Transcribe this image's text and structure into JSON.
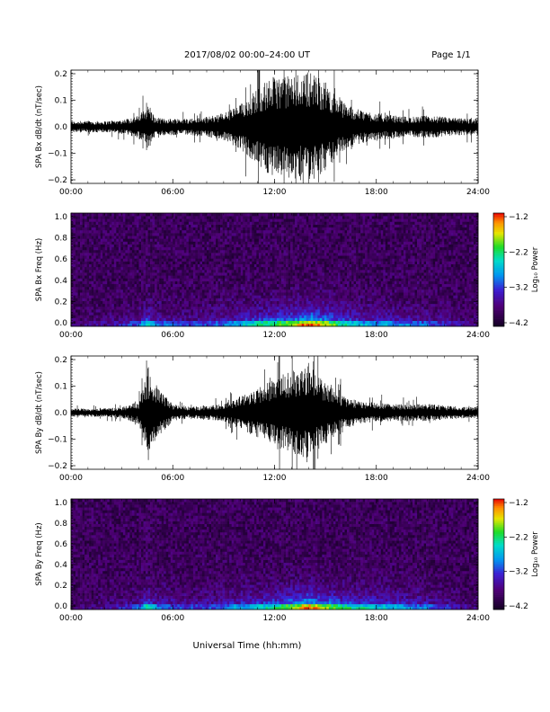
{
  "header": {
    "title": "2017/08/02   00:00–24:00 UT",
    "page": "Page 1/1"
  },
  "footer": {
    "xlabel": "Universal Time (hh:mm)"
  },
  "colors": {
    "background": "#ffffff",
    "trace": "#000000",
    "spectrogram_floor": "#1a0030"
  },
  "chart_data": [
    {
      "type": "line",
      "ylabel": "SPA Bx dB/dt (nT/sec)",
      "x_ticks": [
        "00:00",
        "06:00",
        "12:00",
        "18:00",
        "24:00"
      ],
      "y_ticks": [
        "0.2",
        "0.1",
        "0.0",
        "−0.1",
        "−0.2"
      ],
      "ylim": [
        -0.2,
        0.2
      ],
      "x": [
        0,
        1,
        2,
        3,
        4,
        4.5,
        5,
        6,
        7,
        8,
        9,
        10,
        11,
        12,
        13,
        14,
        15,
        16,
        17,
        18,
        19,
        20,
        21,
        22,
        23,
        24
      ],
      "amplitude": [
        0.02,
        0.02,
        0.02,
        0.025,
        0.04,
        0.08,
        0.03,
        0.03,
        0.03,
        0.035,
        0.05,
        0.08,
        0.14,
        0.18,
        0.18,
        0.2,
        0.16,
        0.09,
        0.06,
        0.05,
        0.04,
        0.035,
        0.04,
        0.035,
        0.03,
        0.03
      ]
    },
    {
      "type": "heatmap",
      "ylabel": "SPA Bx Freq (Hz)",
      "x_ticks": [
        "00:00",
        "06:00",
        "12:00",
        "18:00",
        "24:00"
      ],
      "y_ticks": [
        "1.0",
        "0.8",
        "0.6",
        "0.4",
        "0.2",
        "0.0"
      ],
      "ylim": [
        0,
        1.0
      ],
      "colorbar": {
        "label": "Log₁₀ Power",
        "ticks": [
          "−1.2",
          "−2.2",
          "−3.2",
          "−4.2"
        ],
        "range": [
          -4.2,
          -1.2
        ]
      },
      "x": [
        0,
        1,
        2,
        3,
        4,
        4.5,
        5,
        6,
        7,
        8,
        9,
        10,
        11,
        12,
        13,
        14,
        15,
        16,
        17,
        18,
        19,
        20,
        21,
        22,
        23,
        24
      ],
      "band_power": [
        -3.8,
        -3.7,
        -3.6,
        -3.5,
        -3.3,
        -2.8,
        -3.2,
        -3.3,
        -3.4,
        -3.3,
        -3.2,
        -3.0,
        -2.8,
        -2.6,
        -2.4,
        -2.0,
        -2.3,
        -2.8,
        -3.0,
        -3.1,
        -3.1,
        -3.2,
        -3.3,
        -3.4,
        -3.6,
        -3.7
      ]
    },
    {
      "type": "line",
      "ylabel": "SPA By dB/dt (nT/sec)",
      "x_ticks": [
        "00:00",
        "06:00",
        "12:00",
        "18:00",
        "24:00"
      ],
      "y_ticks": [
        "0.2",
        "0.1",
        "0.0",
        "−0.1",
        "−0.2"
      ],
      "ylim": [
        -0.2,
        0.2
      ],
      "x": [
        0,
        1,
        2,
        3,
        4,
        4.5,
        5,
        6,
        7,
        8,
        9,
        10,
        11,
        12,
        13,
        14,
        15,
        16,
        17,
        18,
        19,
        20,
        21,
        22,
        23,
        24
      ],
      "amplitude": [
        0.015,
        0.015,
        0.015,
        0.02,
        0.04,
        0.14,
        0.1,
        0.03,
        0.02,
        0.025,
        0.03,
        0.06,
        0.09,
        0.12,
        0.15,
        0.18,
        0.11,
        0.06,
        0.04,
        0.035,
        0.03,
        0.03,
        0.03,
        0.025,
        0.02,
        0.02
      ]
    },
    {
      "type": "heatmap",
      "ylabel": "SPA By Freq (Hz)",
      "x_ticks": [
        "00:00",
        "06:00",
        "12:00",
        "18:00",
        "24:00"
      ],
      "y_ticks": [
        "1.0",
        "0.8",
        "0.6",
        "0.4",
        "0.2",
        "0.0"
      ],
      "ylim": [
        0,
        1.0
      ],
      "colorbar": {
        "label": "Log₁₀ Power",
        "ticks": [
          "−1.2",
          "−2.2",
          "−3.2",
          "−4.2"
        ],
        "range": [
          -4.2,
          -1.2
        ]
      },
      "x": [
        0,
        1,
        2,
        3,
        4,
        4.5,
        5,
        6,
        7,
        8,
        9,
        10,
        11,
        12,
        13,
        14,
        15,
        16,
        17,
        18,
        19,
        20,
        21,
        22,
        23,
        24
      ],
      "band_power": [
        -3.8,
        -3.7,
        -3.6,
        -3.5,
        -3.3,
        -2.7,
        -3.1,
        -3.3,
        -3.4,
        -3.3,
        -3.2,
        -3.0,
        -2.9,
        -2.7,
        -2.4,
        -2.0,
        -2.4,
        -2.7,
        -2.8,
        -2.9,
        -3.0,
        -3.1,
        -3.2,
        -3.4,
        -3.6,
        -3.7
      ]
    }
  ]
}
